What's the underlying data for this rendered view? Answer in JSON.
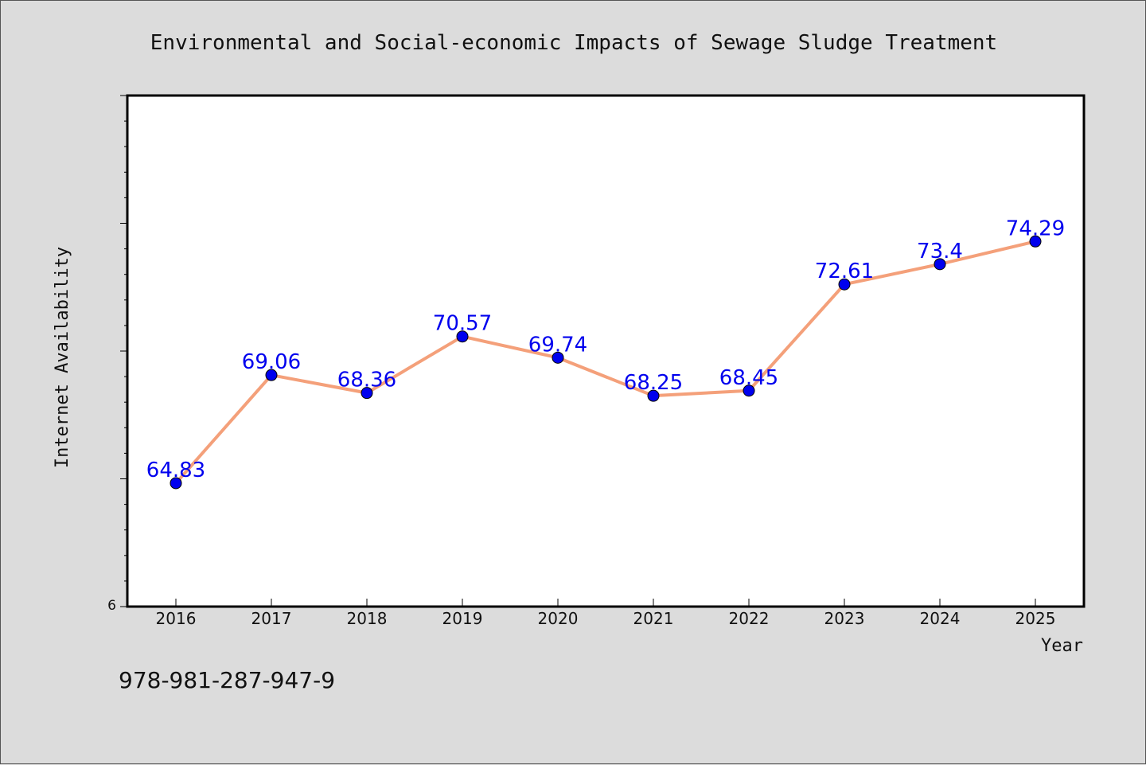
{
  "chart_data": {
    "type": "line",
    "title": "Environmental and Social-economic Impacts of Sewage Sludge Treatment",
    "xlabel": "Year",
    "ylabel": "Internet Availability",
    "categories": [
      "2016",
      "2017",
      "2018",
      "2019",
      "2020",
      "2021",
      "2022",
      "2023",
      "2024",
      "2025"
    ],
    "series": [
      {
        "values": [
          64.83,
          69.06,
          68.36,
          70.57,
          69.74,
          68.25,
          68.45,
          72.61,
          73.4,
          74.29
        ],
        "data_labels": [
          "64.83",
          "69.06",
          "68.36",
          "70.57",
          "69.74",
          "68.25",
          "68.45",
          "72.61",
          "73.4",
          "74.29"
        ]
      }
    ],
    "ylim": [
      60,
      80
    ],
    "y_tick_label": "6",
    "grid": false,
    "line_color": "#f4a07a",
    "marker_color": "#0000ee",
    "label_color": "#0000ee"
  },
  "footer": {
    "isbn": "978-981-287-947-9"
  }
}
